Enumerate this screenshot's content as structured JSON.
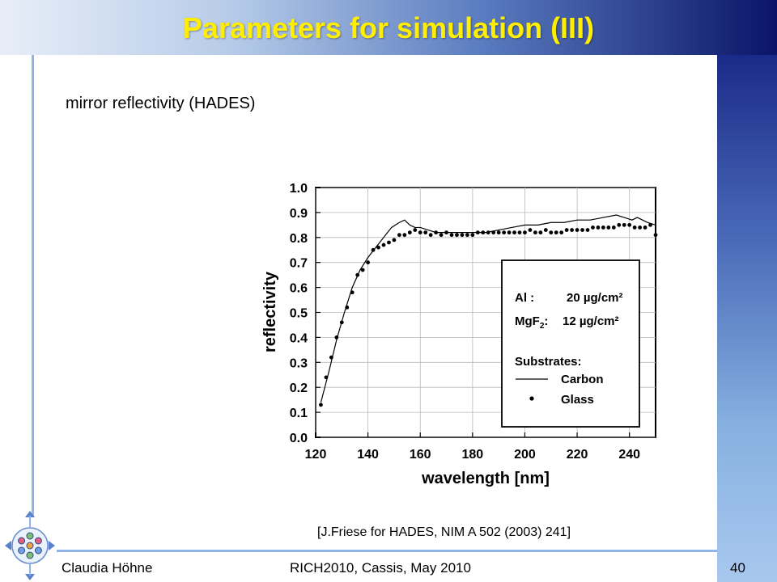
{
  "slide": {
    "title": "Parameters for simulation (III)",
    "subtitle": "mirror reflectivity (HADES)",
    "citation": "[J.Friese for HADES, NIM A 502 (2003) 241]",
    "footer_author": "Claudia Höhne",
    "footer_conference": "RICH2010, Cassis, May 2010",
    "page_number": "40",
    "colors": {
      "title": "#ffee00",
      "accent": "#8fb4e8",
      "header_dark": "#0a1468"
    }
  },
  "chart_data": {
    "type": "line",
    "xlabel": "wavelength [nm]",
    "ylabel": "reflectivity",
    "xlim": [
      120,
      250
    ],
    "ylim": [
      0.0,
      1.0
    ],
    "xticks": [
      120,
      140,
      160,
      180,
      200,
      220,
      240
    ],
    "yticks": [
      0.0,
      0.1,
      0.2,
      0.3,
      0.4,
      0.5,
      0.6,
      0.7,
      0.8,
      0.9,
      1.0
    ],
    "xtick_labels": [
      "120",
      "140",
      "160",
      "180",
      "200",
      "220",
      "240"
    ],
    "ytick_labels": [
      "0.0",
      "0.1",
      "0.2",
      "0.3",
      "0.4",
      "0.5",
      "0.6",
      "0.7",
      "0.8",
      "0.9",
      "1.0"
    ],
    "grid": true,
    "legend_position": "center-right",
    "legend": {
      "line1_prefix": "Al :",
      "line1_value": "20 µg/cm²",
      "line2_prefix": "MgF",
      "line2_sub": "2",
      "line2_suffix": ":",
      "line2_value": "12 µg/cm²",
      "substrates_label": "Substrates:"
    },
    "series": [
      {
        "name": "Carbon",
        "style": "line",
        "x": [
          122,
          125,
          128,
          131,
          134,
          137,
          140,
          143,
          146,
          149,
          152,
          154,
          156,
          158,
          160,
          163,
          166,
          170,
          175,
          180,
          185,
          190,
          195,
          200,
          205,
          210,
          215,
          220,
          225,
          230,
          235,
          238,
          241,
          243,
          245,
          247,
          250
        ],
        "y": [
          0.14,
          0.26,
          0.39,
          0.5,
          0.6,
          0.67,
          0.72,
          0.76,
          0.8,
          0.84,
          0.86,
          0.87,
          0.85,
          0.84,
          0.84,
          0.83,
          0.82,
          0.82,
          0.82,
          0.82,
          0.82,
          0.83,
          0.84,
          0.85,
          0.85,
          0.86,
          0.86,
          0.87,
          0.87,
          0.88,
          0.89,
          0.88,
          0.87,
          0.88,
          0.87,
          0.86,
          0.85
        ]
      },
      {
        "name": "Glass",
        "style": "dots",
        "x": [
          122,
          124,
          126,
          128,
          130,
          132,
          134,
          136,
          138,
          140,
          142,
          144,
          146,
          148,
          150,
          152,
          154,
          156,
          158,
          160,
          162,
          164,
          166,
          168,
          170,
          172,
          174,
          176,
          178,
          180,
          182,
          184,
          186,
          188,
          190,
          192,
          194,
          196,
          198,
          200,
          202,
          204,
          206,
          208,
          210,
          212,
          214,
          216,
          218,
          220,
          222,
          224,
          226,
          228,
          230,
          232,
          234,
          236,
          238,
          240,
          242,
          244,
          246,
          248,
          250
        ],
        "y": [
          0.13,
          0.24,
          0.32,
          0.4,
          0.46,
          0.52,
          0.58,
          0.65,
          0.67,
          0.7,
          0.75,
          0.76,
          0.77,
          0.78,
          0.79,
          0.81,
          0.81,
          0.82,
          0.83,
          0.82,
          0.82,
          0.81,
          0.82,
          0.81,
          0.82,
          0.81,
          0.81,
          0.81,
          0.81,
          0.81,
          0.82,
          0.82,
          0.82,
          0.82,
          0.82,
          0.82,
          0.82,
          0.82,
          0.82,
          0.82,
          0.83,
          0.82,
          0.82,
          0.83,
          0.82,
          0.82,
          0.82,
          0.83,
          0.83,
          0.83,
          0.83,
          0.83,
          0.84,
          0.84,
          0.84,
          0.84,
          0.84,
          0.85,
          0.85,
          0.85,
          0.84,
          0.84,
          0.84,
          0.85,
          0.81
        ]
      }
    ]
  }
}
